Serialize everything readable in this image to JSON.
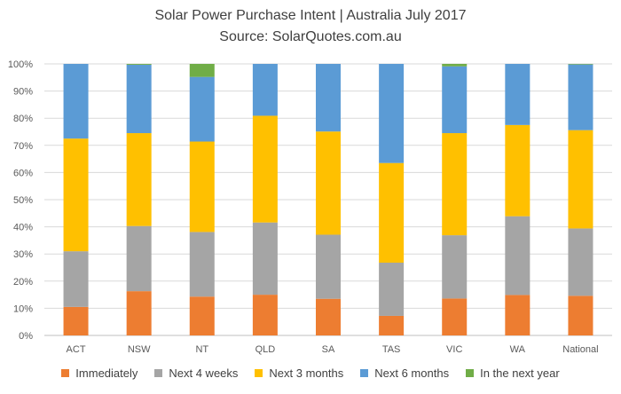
{
  "colors": {
    "Immediately": "#ED7D31",
    "Next 4 weeks": "#A5A5A5",
    "Next 3 months": "#FFC000",
    "Next 6 months": "#5B9BD5",
    "In the next year": "#70AD47",
    "grid": "#D9D9D9",
    "axis": "#BFBFBF"
  },
  "chart_data": {
    "type": "bar",
    "stacked": true,
    "title": "Solar Power Purchase Intent | Australia July 2017",
    "subtitle": "Source: SolarQuotes.com.au",
    "xlabel": "",
    "ylabel": "",
    "ylim": [
      0,
      100
    ],
    "y_ticks": [
      "0%",
      "10%",
      "20%",
      "30%",
      "40%",
      "50%",
      "60%",
      "70%",
      "80%",
      "90%",
      "100%"
    ],
    "grid": "horizontal",
    "legend_position": "bottom",
    "categories": [
      "ACT",
      "NSW",
      "NT",
      "QLD",
      "SA",
      "TAS",
      "VIC",
      "WA",
      "National"
    ],
    "series": [
      {
        "name": "Immediately",
        "values": [
          10.5,
          16.3,
          14.3,
          15.0,
          13.5,
          7.2,
          13.6,
          14.9,
          14.6
        ]
      },
      {
        "name": "Next 4 weeks",
        "values": [
          20.5,
          24.0,
          23.8,
          26.6,
          23.6,
          19.6,
          23.3,
          29.0,
          24.8
        ]
      },
      {
        "name": "Next 3 months",
        "values": [
          41.5,
          34.2,
          33.3,
          39.3,
          38.0,
          36.7,
          37.6,
          33.6,
          36.2
        ]
      },
      {
        "name": "Next 6 months",
        "values": [
          27.5,
          25.2,
          23.8,
          19.1,
          24.9,
          36.5,
          24.6,
          22.5,
          24.2
        ]
      },
      {
        "name": "In the next year",
        "values": [
          0.0,
          0.3,
          4.8,
          0.0,
          0.0,
          0.0,
          0.9,
          0.0,
          0.2
        ]
      }
    ]
  }
}
